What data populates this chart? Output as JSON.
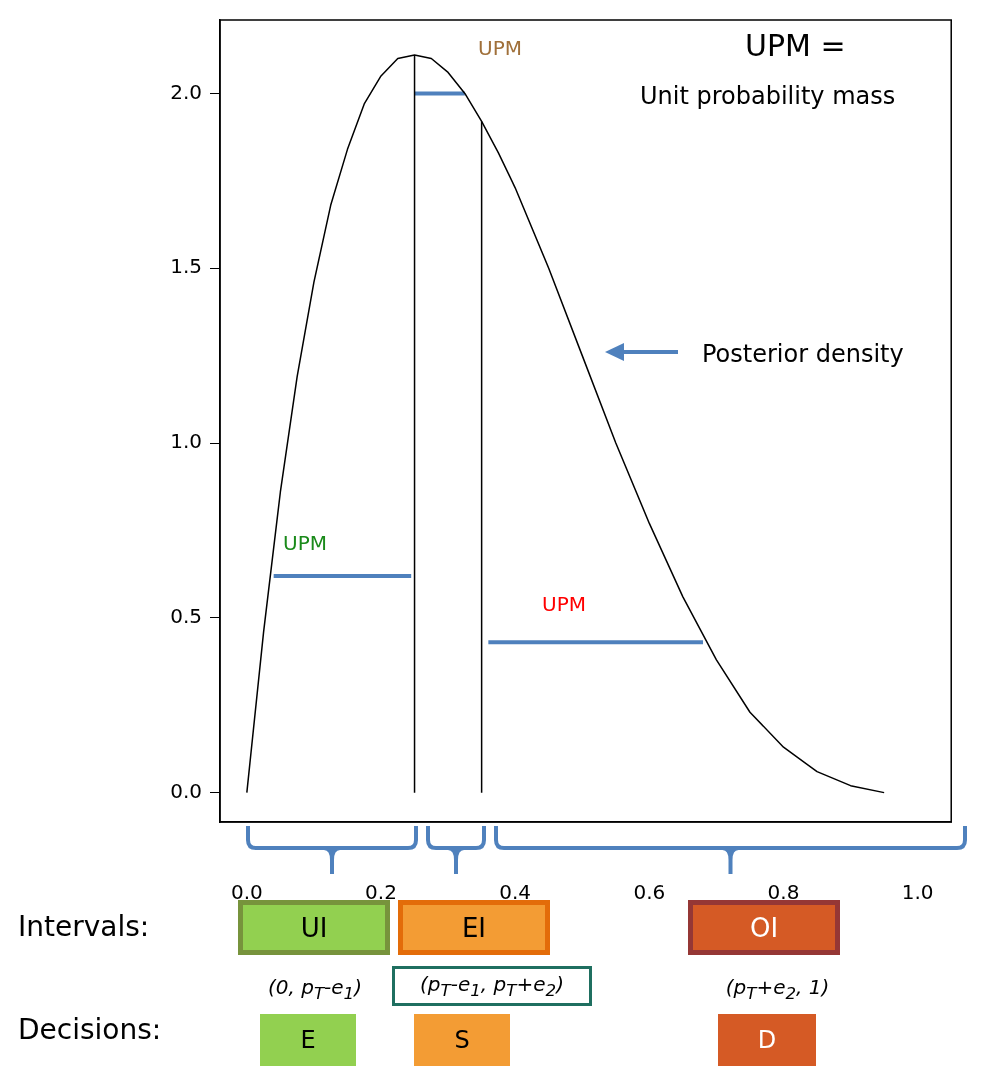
{
  "chart_data": {
    "type": "line",
    "xlim": [
      -0.04,
      1.05
    ],
    "ylim": [
      -0.084,
      2.21
    ],
    "xticks": [
      {
        "value": 0,
        "label": "0.0"
      },
      {
        "value": 0.2,
        "label": "0.2"
      },
      {
        "value": 0.4,
        "label": "0.4"
      },
      {
        "value": 0.6,
        "label": "0.6"
      },
      {
        "value": 0.8,
        "label": "0.8"
      },
      {
        "value": 1,
        "label": "1.0"
      }
    ],
    "yticks": [
      {
        "value": 0,
        "label": "0.0"
      },
      {
        "value": 0.5,
        "label": "0.5"
      },
      {
        "value": 1,
        "label": "1.0"
      },
      {
        "value": 1.5,
        "label": "1.5"
      },
      {
        "value": 2,
        "label": "2.0"
      }
    ],
    "grid": false,
    "legend": false,
    "marker": "none",
    "series": [
      {
        "color": "#000000",
        "x": [
          0,
          0.025,
          0.05,
          0.075,
          0.1,
          0.125,
          0.15,
          0.175,
          0.2,
          0.225,
          0.25,
          0.275,
          0.3,
          0.325,
          0.35,
          0.375,
          0.4,
          0.45,
          0.5,
          0.55,
          0.6,
          0.65,
          0.7,
          0.75,
          0.8,
          0.85,
          0.9,
          0.95
        ],
        "values": [
          0,
          0.46,
          0.86,
          1.19,
          1.46,
          1.68,
          1.84,
          1.97,
          2.05,
          2.1,
          2.11,
          2.1,
          2.06,
          2,
          1.92,
          1.83,
          1.73,
          1.5,
          1.25,
          1,
          0.77,
          0.56,
          0.38,
          0.23,
          0.13,
          0.06,
          0.02,
          0
        ]
      },
      {
        "color": "#000000",
        "x": [
          0.25,
          0.25
        ],
        "values": [
          0,
          2.11
        ]
      },
      {
        "color": "#000000",
        "x": [
          0.35,
          0.35
        ],
        "values": [
          0,
          1.92
        ]
      },
      {
        "color": "#4f81bd",
        "x": [
          0.04,
          0.245
        ],
        "values": [
          0.62,
          0.62
        ]
      },
      {
        "color": "#4f81bd",
        "x": [
          0.25,
          0.325
        ],
        "values": [
          2,
          2
        ]
      },
      {
        "color": "#4f81bd",
        "x": [
          0.36,
          0.68
        ],
        "values": [
          0.43,
          0.43
        ]
      }
    ],
    "annotations": [
      "UPM",
      "UPM",
      "UPM",
      "UPM =",
      "Unit probability mass",
      "Posterior density",
      "Intervals:",
      "UI",
      "EI",
      "OI",
      "(0, p$_{T}$-e$_{1}$)",
      "(p$_{T}$-e$_{1}$, p$_{T}$+e$_{2}$)",
      "(p$_{T}$+e$_{2}$, 1)",
      "Decisions:",
      "E",
      "S",
      "D"
    ]
  }
}
